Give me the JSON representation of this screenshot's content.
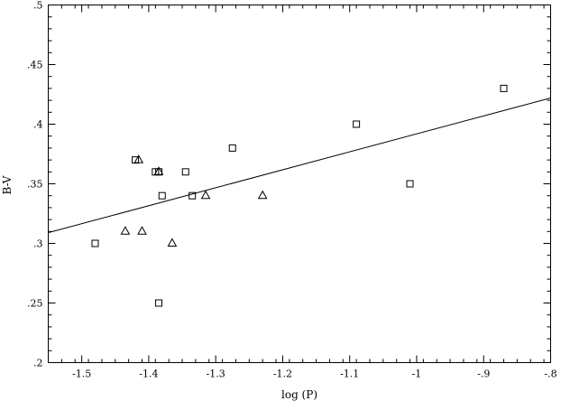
{
  "chart_data": {
    "type": "scatter",
    "xlabel": "log (P)",
    "ylabel": "B-V",
    "xlim": [
      -1.55,
      -0.8
    ],
    "ylim": [
      0.2,
      0.5
    ],
    "x_ticks": [
      -1.5,
      -1.4,
      -1.3,
      -1.2,
      -1.1,
      -1,
      -0.9,
      -0.8
    ],
    "x_tick_labels": [
      "-1.5",
      "-1.4",
      "-1.3",
      "-1.2",
      "-1.1",
      "-1",
      "-.9",
      "-.8"
    ],
    "y_ticks": [
      0.2,
      0.25,
      0.3,
      0.35,
      0.4,
      0.45,
      0.5
    ],
    "y_tick_labels": [
      ".2",
      ".25",
      ".3",
      ".35",
      ".4",
      ".45",
      ".5"
    ],
    "grid": false,
    "series": [
      {
        "marker": "square",
        "x": [
          -1.48,
          -1.42,
          -1.39,
          -1.385,
          -1.38,
          -1.345,
          -1.335,
          -1.275,
          -1.09,
          -1.01,
          -0.87,
          -1.385
        ],
        "y": [
          0.3,
          0.37,
          0.36,
          0.36,
          0.34,
          0.36,
          0.34,
          0.38,
          0.4,
          0.35,
          0.43,
          0.25
        ]
      },
      {
        "marker": "triangle",
        "x": [
          -1.435,
          -1.415,
          -1.385,
          -1.41,
          -1.365,
          -1.315,
          -1.23
        ],
        "y": [
          0.31,
          0.37,
          0.36,
          0.31,
          0.3,
          0.34,
          0.34
        ]
      },
      {
        "marker": "line",
        "x": [
          -1.55,
          -0.8
        ],
        "y": [
          0.309,
          0.422
        ]
      }
    ]
  }
}
